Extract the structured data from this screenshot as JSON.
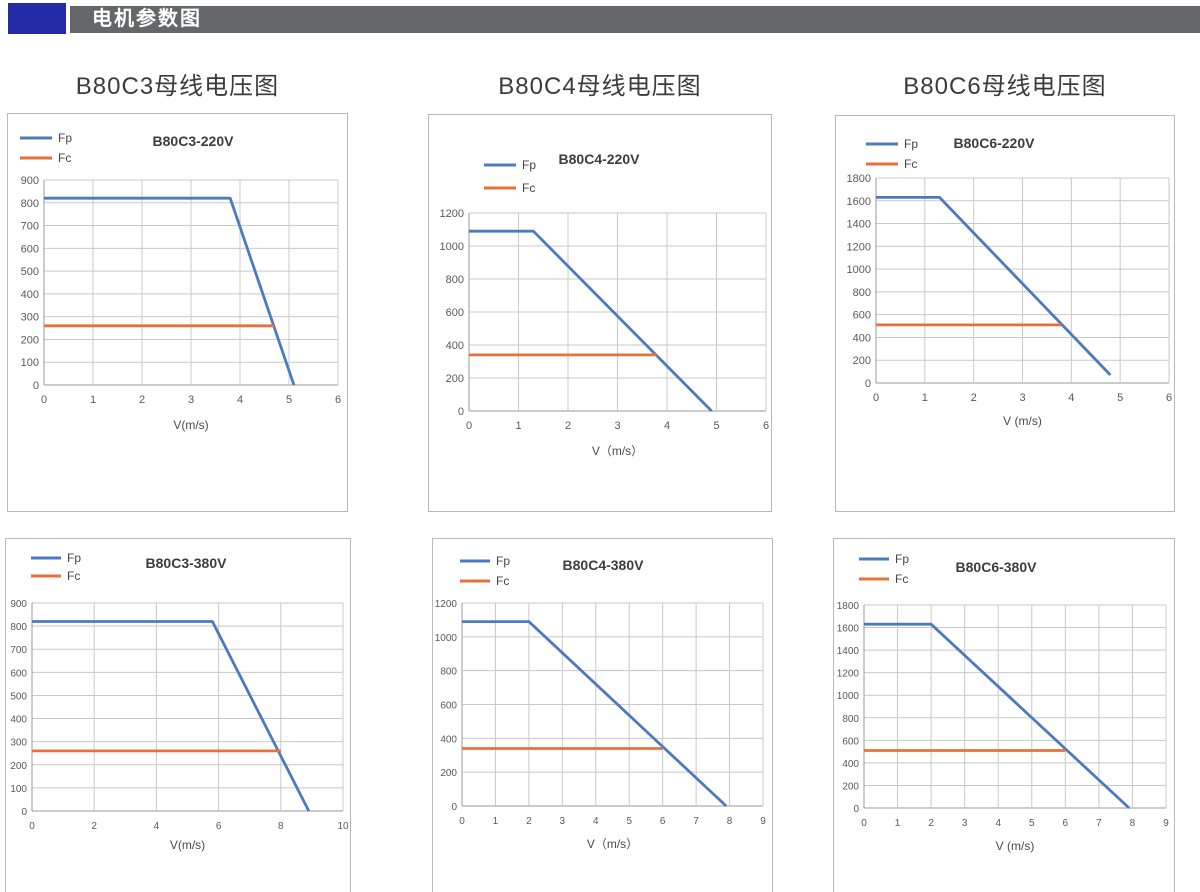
{
  "header": {
    "title": "电机参数图",
    "accent_color": "#232ba6",
    "bar_color": "#65666a"
  },
  "colors": {
    "fp": "#4b7bbf",
    "fc": "#e8703a",
    "grid": "#c9c9c9",
    "axis": "#9a9a9a",
    "tick_text": "#595959",
    "title_text": "#3d3d3d"
  },
  "chart_data": [
    {
      "type": "line",
      "outer_title": "B80C3母线电压图",
      "title": "B80C3-220V",
      "xlabel": "V(m/s)",
      "ylabel": "",
      "xlim": [
        0,
        6
      ],
      "ylim": [
        0,
        900
      ],
      "x_ticks": [
        0,
        1,
        2,
        3,
        4,
        5,
        6
      ],
      "y_ticks": [
        0,
        100,
        200,
        300,
        400,
        500,
        600,
        700,
        800,
        900
      ],
      "grid": true,
      "legend": [
        "Fp",
        "Fc"
      ],
      "legend_position": "top-left",
      "series": [
        {
          "name": "Fp",
          "color_key": "fp",
          "points": [
            [
              0,
              820
            ],
            [
              3.8,
              820
            ],
            [
              5.1,
              0
            ]
          ]
        },
        {
          "name": "Fc",
          "color_key": "fc",
          "points": [
            [
              0,
              260
            ],
            [
              4.7,
              260
            ]
          ]
        }
      ]
    },
    {
      "type": "line",
      "outer_title": "B80C4母线电压图",
      "title": "B80C4-220V",
      "xlabel": "V（m/s）",
      "ylabel": "",
      "xlim": [
        0,
        6
      ],
      "ylim": [
        0,
        1200
      ],
      "x_ticks": [
        0,
        1,
        2,
        3,
        4,
        5,
        6
      ],
      "y_ticks": [
        0,
        200,
        400,
        600,
        800,
        1000,
        1200
      ],
      "grid": true,
      "legend": [
        "Fp",
        "Fc"
      ],
      "legend_position": "top-left",
      "series": [
        {
          "name": "Fp",
          "color_key": "fp",
          "points": [
            [
              0,
              1090
            ],
            [
              1.3,
              1090
            ],
            [
              4.9,
              0
            ]
          ]
        },
        {
          "name": "Fc",
          "color_key": "fc",
          "points": [
            [
              0,
              340
            ],
            [
              3.8,
              340
            ]
          ]
        }
      ]
    },
    {
      "type": "line",
      "outer_title": "B80C6母线电压图",
      "title": "B80C6-220V",
      "xlabel": "V (m/s)",
      "ylabel": "",
      "xlim": [
        0,
        6
      ],
      "ylim": [
        0,
        1800
      ],
      "x_ticks": [
        0,
        1,
        2,
        3,
        4,
        5,
        6
      ],
      "y_ticks": [
        0,
        200,
        400,
        600,
        800,
        1000,
        1200,
        1400,
        1600,
        1800
      ],
      "grid": true,
      "legend": [
        "Fp",
        "Fc"
      ],
      "legend_position": "top-left",
      "series": [
        {
          "name": "Fp",
          "color_key": "fp",
          "points": [
            [
              0,
              1630
            ],
            [
              1.3,
              1630
            ],
            [
              4.8,
              70
            ]
          ]
        },
        {
          "name": "Fc",
          "color_key": "fc",
          "points": [
            [
              0,
              510
            ],
            [
              3.8,
              510
            ]
          ]
        }
      ]
    },
    {
      "type": "line",
      "outer_title": null,
      "title": "B80C3-380V",
      "xlabel": "V(m/s)",
      "ylabel": "",
      "xlim": [
        0,
        10
      ],
      "ylim": [
        0,
        900
      ],
      "x_ticks": [
        0,
        2,
        4,
        6,
        8,
        10
      ],
      "y_ticks": [
        0,
        100,
        200,
        300,
        400,
        500,
        600,
        700,
        800,
        900
      ],
      "grid": true,
      "legend": [
        "Fp",
        "Fc"
      ],
      "legend_position": "top-left",
      "series": [
        {
          "name": "Fp",
          "color_key": "fp",
          "points": [
            [
              0,
              820
            ],
            [
              5.8,
              820
            ],
            [
              8.9,
              0
            ]
          ]
        },
        {
          "name": "Fc",
          "color_key": "fc",
          "points": [
            [
              0,
              260
            ],
            [
              8,
              260
            ]
          ]
        }
      ]
    },
    {
      "type": "line",
      "outer_title": null,
      "title": "B80C4-380V",
      "xlabel": "V（m/s）",
      "ylabel": "",
      "xlim": [
        0,
        9
      ],
      "ylim": [
        0,
        1200
      ],
      "x_ticks": [
        0,
        1,
        2,
        3,
        4,
        5,
        6,
        7,
        8,
        9
      ],
      "y_ticks": [
        0,
        200,
        400,
        600,
        800,
        1000,
        1200
      ],
      "grid": true,
      "legend": [
        "Fp",
        "Fc"
      ],
      "legend_position": "top-left",
      "series": [
        {
          "name": "Fp",
          "color_key": "fp",
          "points": [
            [
              0,
              1090
            ],
            [
              2,
              1090
            ],
            [
              7.9,
              0
            ]
          ]
        },
        {
          "name": "Fc",
          "color_key": "fc",
          "points": [
            [
              0,
              340
            ],
            [
              6,
              340
            ]
          ]
        }
      ]
    },
    {
      "type": "line",
      "outer_title": null,
      "title": "B80C6-380V",
      "xlabel": "V (m/s)",
      "ylabel": "",
      "xlim": [
        0,
        9
      ],
      "ylim": [
        0,
        1800
      ],
      "x_ticks": [
        0,
        1,
        2,
        3,
        4,
        5,
        6,
        7,
        8,
        9
      ],
      "y_ticks": [
        0,
        200,
        400,
        600,
        800,
        1000,
        1200,
        1400,
        1600,
        1800
      ],
      "grid": true,
      "legend": [
        "Fp",
        "Fc"
      ],
      "legend_position": "top-left",
      "series": [
        {
          "name": "Fp",
          "color_key": "fp",
          "points": [
            [
              0,
              1630
            ],
            [
              2,
              1630
            ],
            [
              7.9,
              0
            ]
          ]
        },
        {
          "name": "Fc",
          "color_key": "fc",
          "points": [
            [
              0,
              510
            ],
            [
              6,
              510
            ]
          ]
        }
      ]
    }
  ]
}
